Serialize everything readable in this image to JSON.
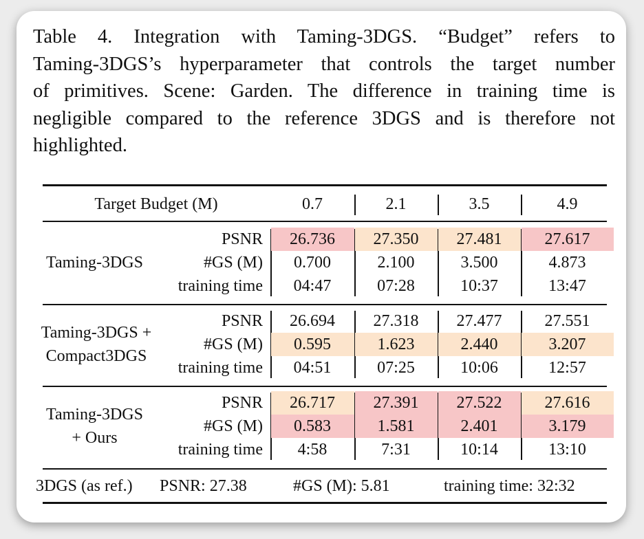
{
  "caption": {
    "lines": [
      "Table 4.  Integration with Taming-3DGS. “Budget” refers to",
      "Taming-3DGS’s hyperparameter that controls the target number",
      "of primitives.  Scene: Garden.  The difference in training time is",
      "negligible compared to the reference 3DGS and is therefore not",
      "highlighted."
    ]
  },
  "table": {
    "header": {
      "label": "Target Budget (M)",
      "budgets": [
        "0.7",
        "2.1",
        "3.5",
        "4.9"
      ]
    },
    "metrics": [
      "PSNR",
      "#GS (M)",
      "training time"
    ],
    "groups": [
      {
        "name_lines": [
          "Taming-3DGS"
        ],
        "rows": [
          [
            "26.736",
            "27.350",
            "27.481",
            "27.617"
          ],
          [
            "0.700",
            "2.100",
            "3.500",
            "4.873"
          ],
          [
            "04:47",
            "07:28",
            "10:37",
            "13:47"
          ]
        ],
        "highlight": [
          [
            "red",
            "orange",
            "orange",
            "red"
          ],
          [
            "none",
            "none",
            "none",
            "none"
          ],
          [
            "none",
            "none",
            "none",
            "none"
          ]
        ]
      },
      {
        "name_lines": [
          "Taming-3DGS +",
          "Compact3DGS"
        ],
        "rows": [
          [
            "26.694",
            "27.318",
            "27.477",
            "27.551"
          ],
          [
            "0.595",
            "1.623",
            "2.440",
            "3.207"
          ],
          [
            "04:51",
            "07:25",
            "10:06",
            "12:57"
          ]
        ],
        "highlight": [
          [
            "none",
            "none",
            "none",
            "none"
          ],
          [
            "orange",
            "orange",
            "orange",
            "orange"
          ],
          [
            "none",
            "none",
            "none",
            "none"
          ]
        ]
      },
      {
        "name_lines": [
          "Taming-3DGS",
          "+ Ours"
        ],
        "rows": [
          [
            "26.717",
            "27.391",
            "27.522",
            "27.616"
          ],
          [
            "0.583",
            "1.581",
            "2.401",
            "3.179"
          ],
          [
            "4:58",
            "7:31",
            "10:14",
            "13:10"
          ]
        ],
        "highlight": [
          [
            "orange",
            "red",
            "red",
            "orange"
          ],
          [
            "red",
            "red",
            "red",
            "red"
          ],
          [
            "none",
            "none",
            "none",
            "none"
          ]
        ]
      }
    ],
    "footer": {
      "ref": "3DGS (as ref.)",
      "psnr": "PSNR: 27.38",
      "gs": "#GS (M): 5.81",
      "time": "training time: 32:32"
    }
  },
  "colors": {
    "best": "#f7c6c7",
    "second": "#fce4cc"
  }
}
